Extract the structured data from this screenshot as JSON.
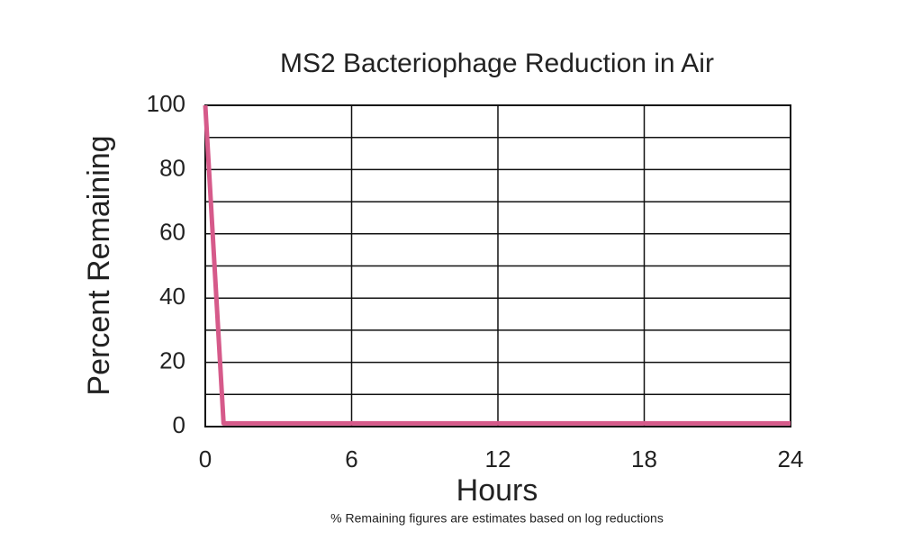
{
  "chart_data": {
    "type": "line",
    "title": "MS2 Bacteriophage Reduction in Air",
    "x_label": "Hours",
    "y_label": "Percent Remaining",
    "note": "% Remaining figures are estimates based on log reductions",
    "x": [
      0,
      0.75,
      24
    ],
    "series": [
      {
        "name": "MS2 Bacteriophage",
        "color": "#d65a8a",
        "values": [
          100,
          1,
          1
        ]
      }
    ],
    "xlim": [
      0,
      24
    ],
    "xticks": [
      0,
      6,
      12,
      18,
      24
    ],
    "ylim": [
      0,
      100
    ],
    "yticks": [
      0,
      20,
      40,
      60,
      80,
      100
    ],
    "y_minor_ticks": [
      10,
      30,
      50,
      70,
      90
    ],
    "grid": true
  }
}
